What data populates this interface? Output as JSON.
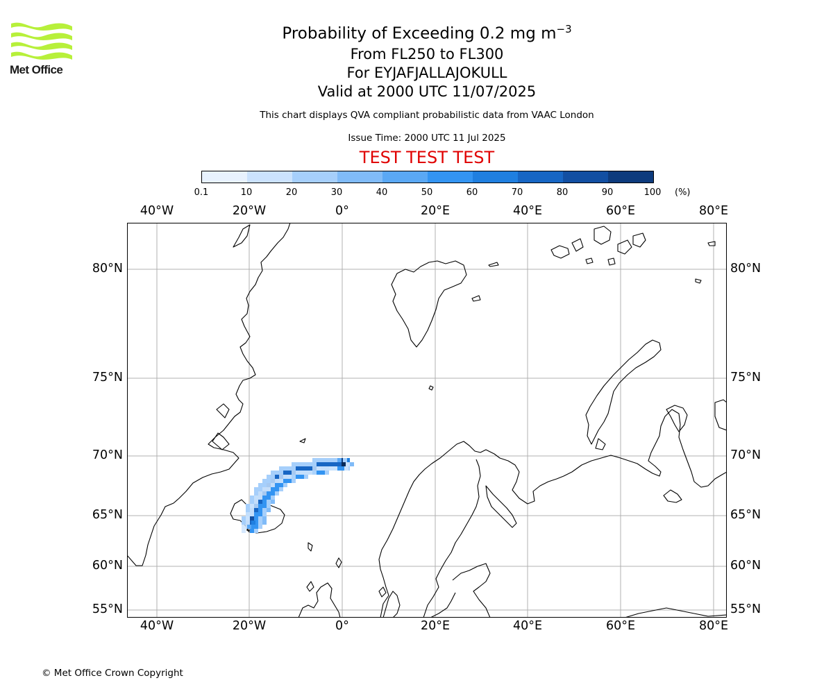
{
  "logo": {
    "name": "Met Office",
    "colors": [
      "#b7f03a",
      "#1a1a1a"
    ]
  },
  "title": {
    "line1_prefix": "Probability of Exceeding 0.2 mg m",
    "line1_sup": "−3",
    "line2": "From FL250 to FL300",
    "line3": "For EYJAFJALLAJOKULL",
    "line4": "Valid at 2000 UTC 11/07/2025"
  },
  "description": "This chart displays QVA compliant probabilistic data from VAAC London",
  "issue_time": "Issue Time: 2000 UTC 11 Jul 2025",
  "test_banner": {
    "text": "TEST TEST TEST",
    "color": "#e00000"
  },
  "colorbar": {
    "labels": [
      "0.1",
      "10",
      "20",
      "30",
      "40",
      "50",
      "60",
      "70",
      "80",
      "90",
      "100"
    ],
    "unit": "(%)",
    "colors": [
      "#e8f2fe",
      "#cbe2fd",
      "#a6cffb",
      "#80bbf8",
      "#5aa8f5",
      "#3394f2",
      "#1f7fe0",
      "#1766c4",
      "#124fa2",
      "#0d3b7d",
      "#082a59"
    ]
  },
  "map": {
    "lon_labels": [
      "40°W",
      "20°W",
      "0°",
      "20°E",
      "40°E",
      "60°E",
      "80°E"
    ],
    "lat_labels": [
      "80°N",
      "75°N",
      "70°N",
      "65°N",
      "60°N",
      "55°N"
    ],
    "grid": true,
    "land_color": "#ffffff",
    "coast_color": "#000000",
    "grid_color": "#b0b0b0",
    "volcano": "EYJAFJALLAJOKULL",
    "plume_color": "#0d3b7d"
  },
  "copyright": "© Met Office Crown Copyright"
}
